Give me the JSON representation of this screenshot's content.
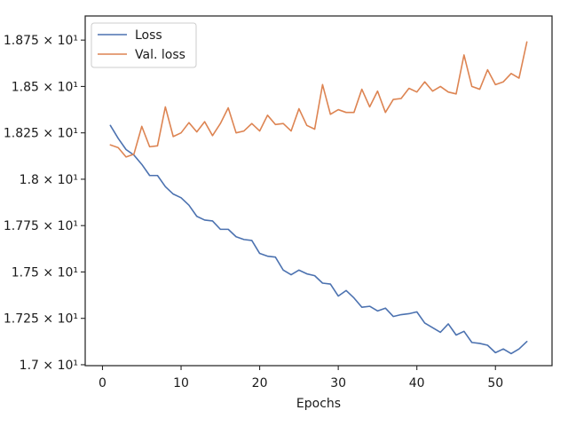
{
  "chart_data": {
    "type": "line",
    "xlabel": "Epochs",
    "ylabel": "",
    "title": "",
    "xlim": [
      -2.2,
      57.2
    ],
    "ylim": [
      16.995,
      18.88
    ],
    "xticks": [
      0,
      10,
      20,
      30,
      40,
      50
    ],
    "xtick_labels": [
      "0",
      "10",
      "20",
      "30",
      "40",
      "50"
    ],
    "yticks": [
      17.0,
      17.25,
      17.5,
      17.75,
      18.0,
      18.25,
      18.5,
      18.75
    ],
    "ytick_labels": [
      "1.7 × 10¹",
      "1.725 × 10¹",
      "1.75 × 10¹",
      "1.775 × 10¹",
      "1.8 × 10¹",
      "1.825 × 10¹",
      "1.85 × 10¹",
      "1.875 × 10¹"
    ],
    "grid": false,
    "legend_position": "top-left",
    "series": [
      {
        "name": "Loss",
        "color": "#4c72b0",
        "x": [
          1,
          2,
          3,
          4,
          5,
          6,
          7,
          8,
          9,
          10,
          11,
          12,
          13,
          14,
          15,
          16,
          17,
          18,
          19,
          20,
          21,
          22,
          23,
          24,
          25,
          26,
          27,
          28,
          29,
          30,
          31,
          32,
          33,
          34,
          35,
          36,
          37,
          38,
          39,
          40,
          41,
          42,
          43,
          44,
          45,
          46,
          47,
          48,
          49,
          50,
          51,
          52,
          53,
          54
        ],
        "values": [
          18.29,
          18.22,
          18.16,
          18.13,
          18.08,
          18.02,
          18.02,
          17.96,
          17.92,
          17.9,
          17.86,
          17.8,
          17.78,
          17.775,
          17.73,
          17.73,
          17.69,
          17.675,
          17.67,
          17.6,
          17.585,
          17.58,
          17.51,
          17.485,
          17.51,
          17.49,
          17.48,
          17.44,
          17.435,
          17.37,
          17.4,
          17.36,
          17.31,
          17.315,
          17.29,
          17.305,
          17.26,
          17.27,
          17.275,
          17.285,
          17.225,
          17.2,
          17.175,
          17.22,
          17.16,
          17.18,
          17.12,
          17.115,
          17.105,
          17.065,
          17.085,
          17.06,
          17.085,
          17.125
        ]
      },
      {
        "name": "Val. loss",
        "color": "#dd8452",
        "x": [
          1,
          2,
          3,
          4,
          5,
          6,
          7,
          8,
          9,
          10,
          11,
          12,
          13,
          14,
          15,
          16,
          17,
          18,
          19,
          20,
          21,
          22,
          23,
          24,
          25,
          26,
          27,
          28,
          29,
          30,
          31,
          32,
          33,
          34,
          35,
          36,
          37,
          38,
          39,
          40,
          41,
          42,
          43,
          44,
          45,
          46,
          47,
          48,
          49,
          50,
          51,
          52,
          53,
          54
        ],
        "values": [
          18.185,
          18.17,
          18.12,
          18.135,
          18.285,
          18.175,
          18.18,
          18.39,
          18.23,
          18.25,
          18.305,
          18.255,
          18.31,
          18.235,
          18.3,
          18.385,
          18.25,
          18.26,
          18.3,
          18.26,
          18.345,
          18.295,
          18.3,
          18.26,
          18.38,
          18.29,
          18.27,
          18.51,
          18.35,
          18.375,
          18.36,
          18.36,
          18.485,
          18.39,
          18.475,
          18.36,
          18.43,
          18.435,
          18.49,
          18.47,
          18.525,
          18.475,
          18.5,
          18.47,
          18.46,
          18.67,
          18.5,
          18.485,
          18.59,
          18.51,
          18.525,
          18.57,
          18.545,
          18.74
        ]
      }
    ]
  }
}
